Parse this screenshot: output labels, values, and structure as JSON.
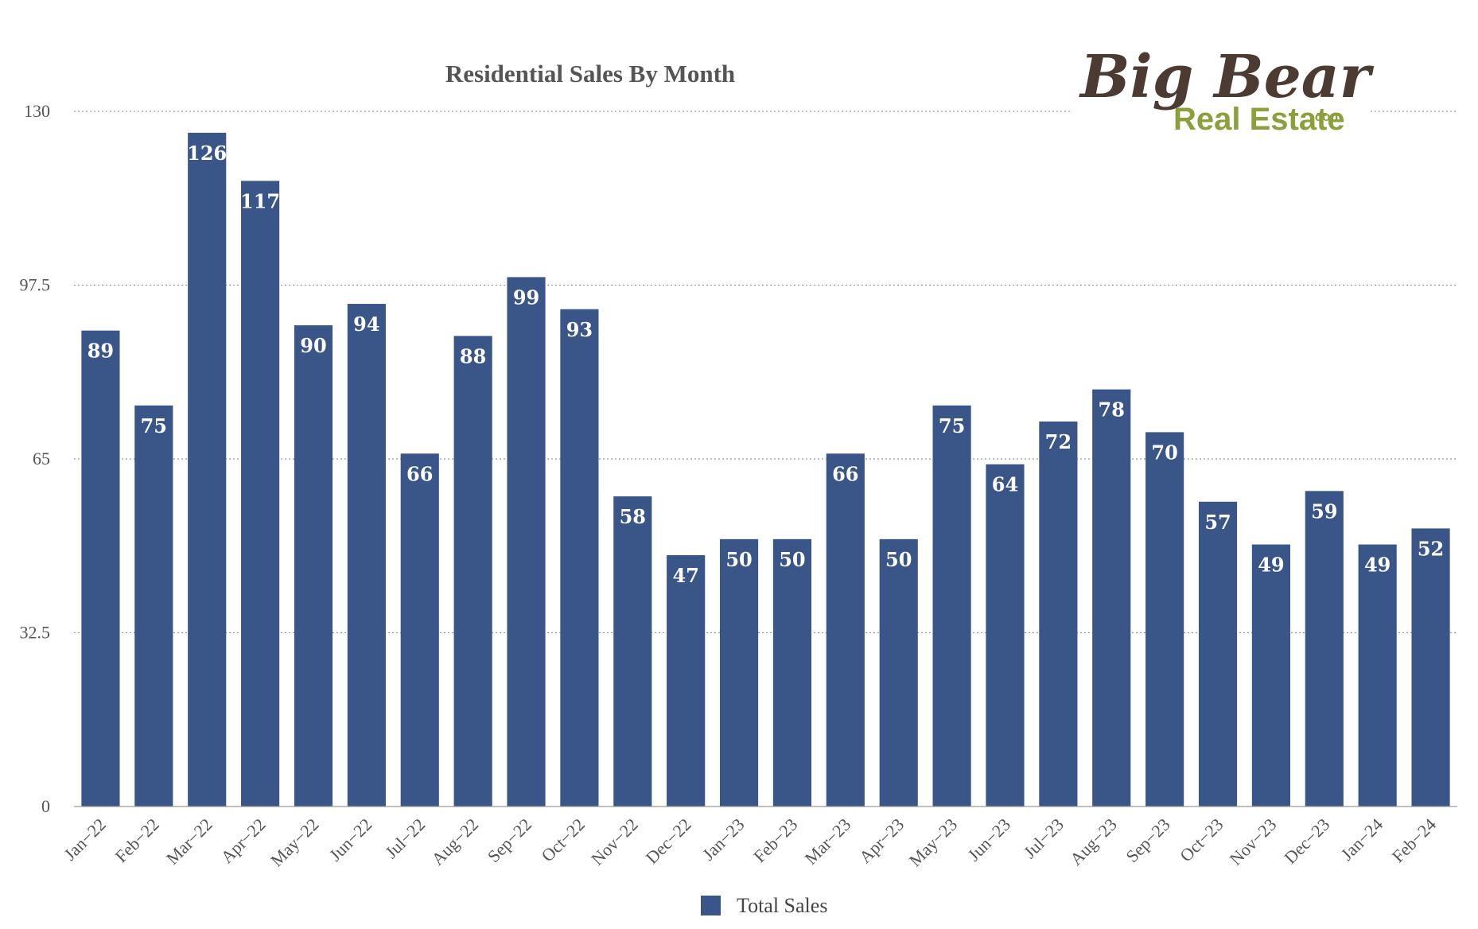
{
  "colors": {
    "bar": "#3a5689",
    "logo_dark": "#4b3b33",
    "logo_green": "#8ba03c"
  },
  "logo": {
    "line1": "Big Bear",
    "line2": "Real Estate",
    "suffix": ".com"
  },
  "chart_data": {
    "type": "bar",
    "title": "Residential Sales By Month",
    "xlabel": "",
    "ylabel": "",
    "ylim": [
      0,
      130
    ],
    "yticks": [
      0,
      32.5,
      65,
      97.5,
      130
    ],
    "ytick_labels": [
      "0",
      "32.5",
      "65",
      "97.5",
      "130"
    ],
    "grid": true,
    "legend_position": "bottom-center",
    "categories": [
      "Jan−22",
      "Feb−22",
      "Mar−22",
      "Apr−22",
      "May−22",
      "Jun−22",
      "Jul−22",
      "Aug−22",
      "Sep−22",
      "Oct−22",
      "Nov−22",
      "Dec−22",
      "Jan−23",
      "Feb−23",
      "Mar−23",
      "Apr−23",
      "May−23",
      "Jun−23",
      "Jul−23",
      "Aug−23",
      "Sep−23",
      "Oct−23",
      "Nov−23",
      "Dec−23",
      "Jan−24",
      "Feb−24"
    ],
    "series": [
      {
        "name": "Total Sales",
        "color": "#3a5689",
        "values": [
          89,
          75,
          126,
          117,
          90,
          94,
          66,
          88,
          99,
          93,
          58,
          47,
          50,
          50,
          66,
          50,
          75,
          64,
          72,
          78,
          70,
          57,
          49,
          59,
          49,
          52
        ]
      }
    ]
  }
}
